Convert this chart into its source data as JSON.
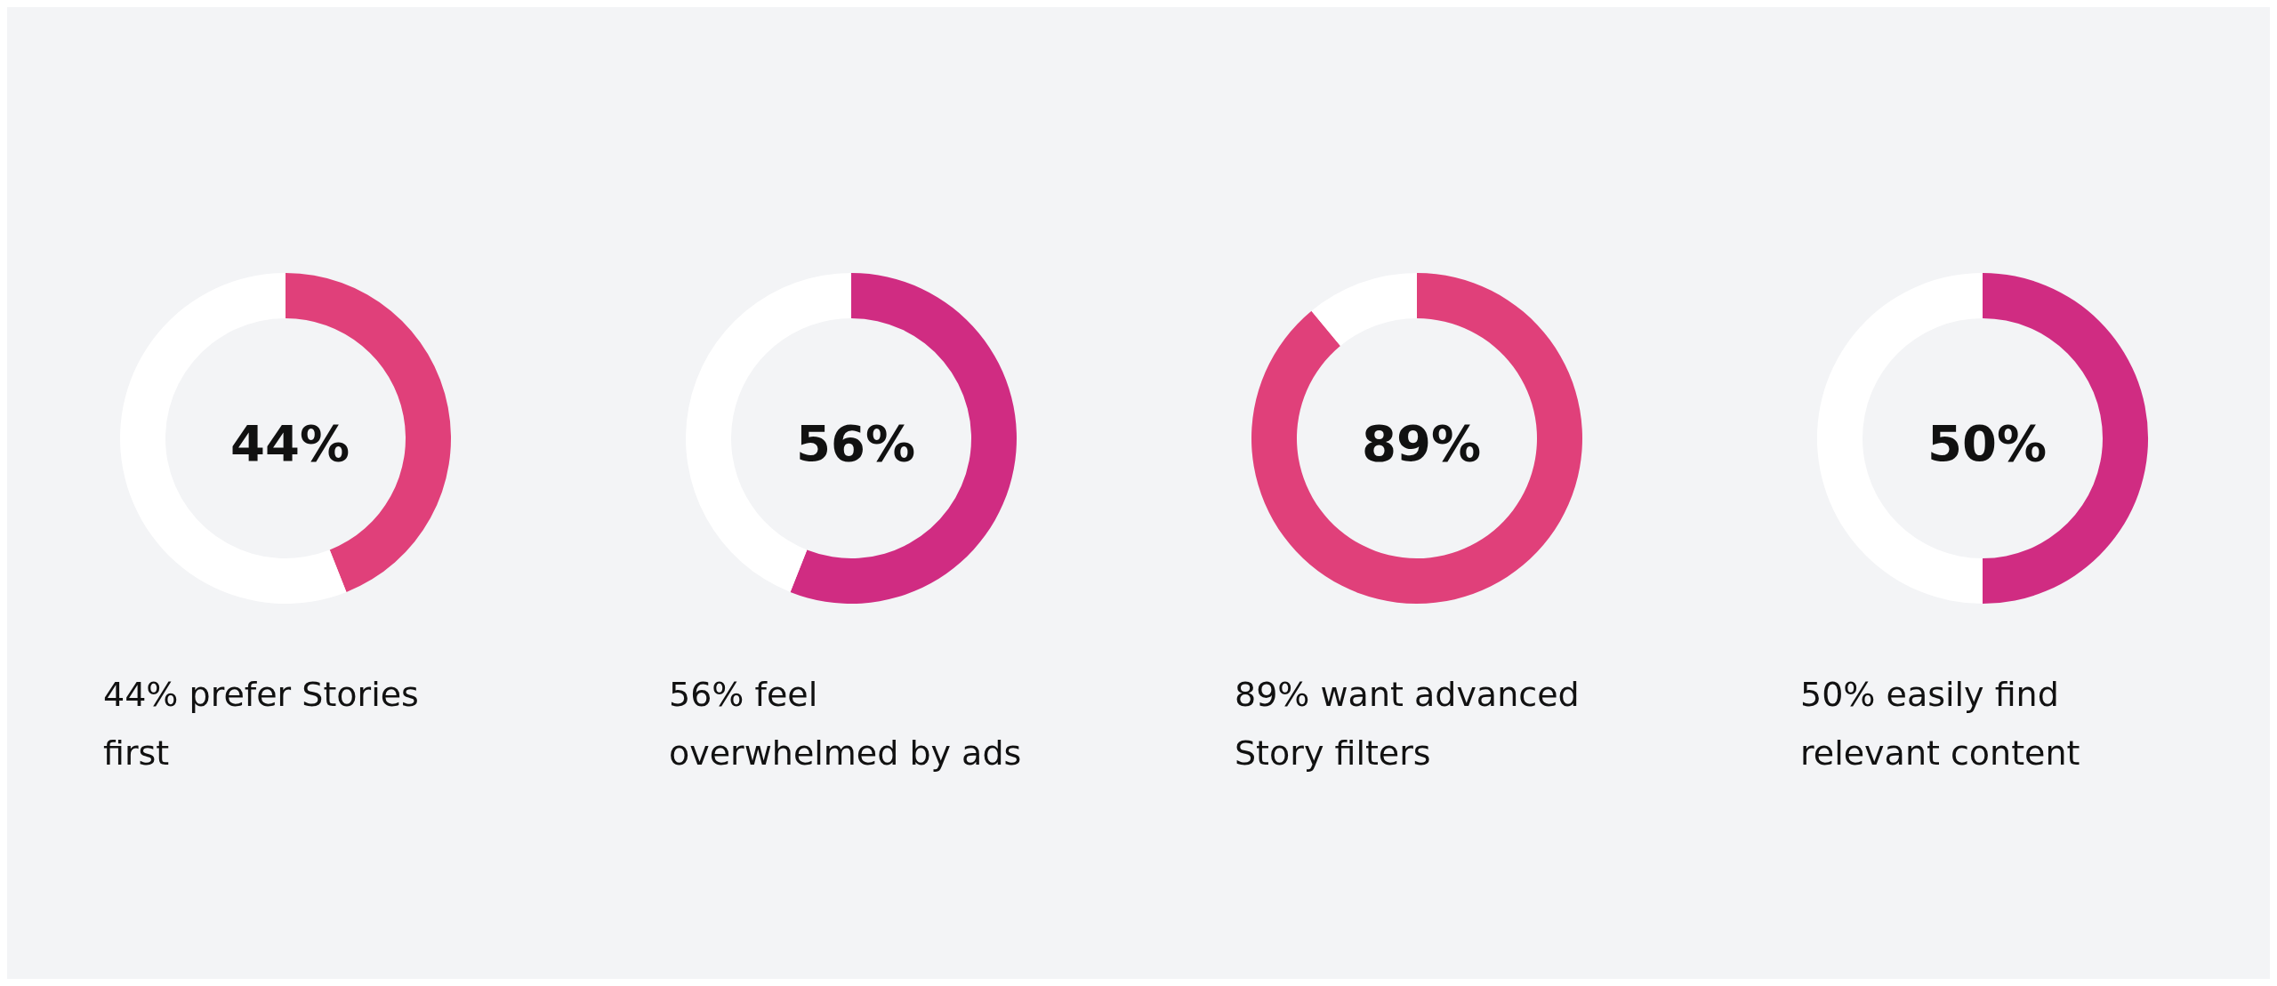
{
  "chart_data": [
    {
      "type": "donut",
      "title": "44%",
      "categories": [
        null,
        null
      ],
      "values": [
        44,
        56
      ],
      "colors": [
        "#e0407a",
        "#ffffff"
      ],
      "annotations": [
        "44% prefer Stories first"
      ]
    },
    {
      "type": "donut",
      "title": "56%",
      "categories": [
        null,
        null
      ],
      "values": [
        56,
        44
      ],
      "colors": [
        "#d02c82",
        "#ffffff"
      ],
      "annotations": [
        "56% feel overwhelmed by ads"
      ]
    },
    {
      "type": "donut",
      "title": "89%",
      "categories": [
        null,
        null
      ],
      "values": [
        89,
        11
      ],
      "colors": [
        "#e0407a",
        "#ffffff"
      ],
      "annotations": [
        "89% want advanced Story filters"
      ]
    },
    {
      "type": "donut",
      "title": "50%",
      "categories": [
        null,
        null
      ],
      "values": [
        50,
        50
      ],
      "colors": [
        "#d02c82",
        "#ffffff"
      ],
      "annotations": [
        "50% easily find relevant content"
      ]
    }
  ]
}
